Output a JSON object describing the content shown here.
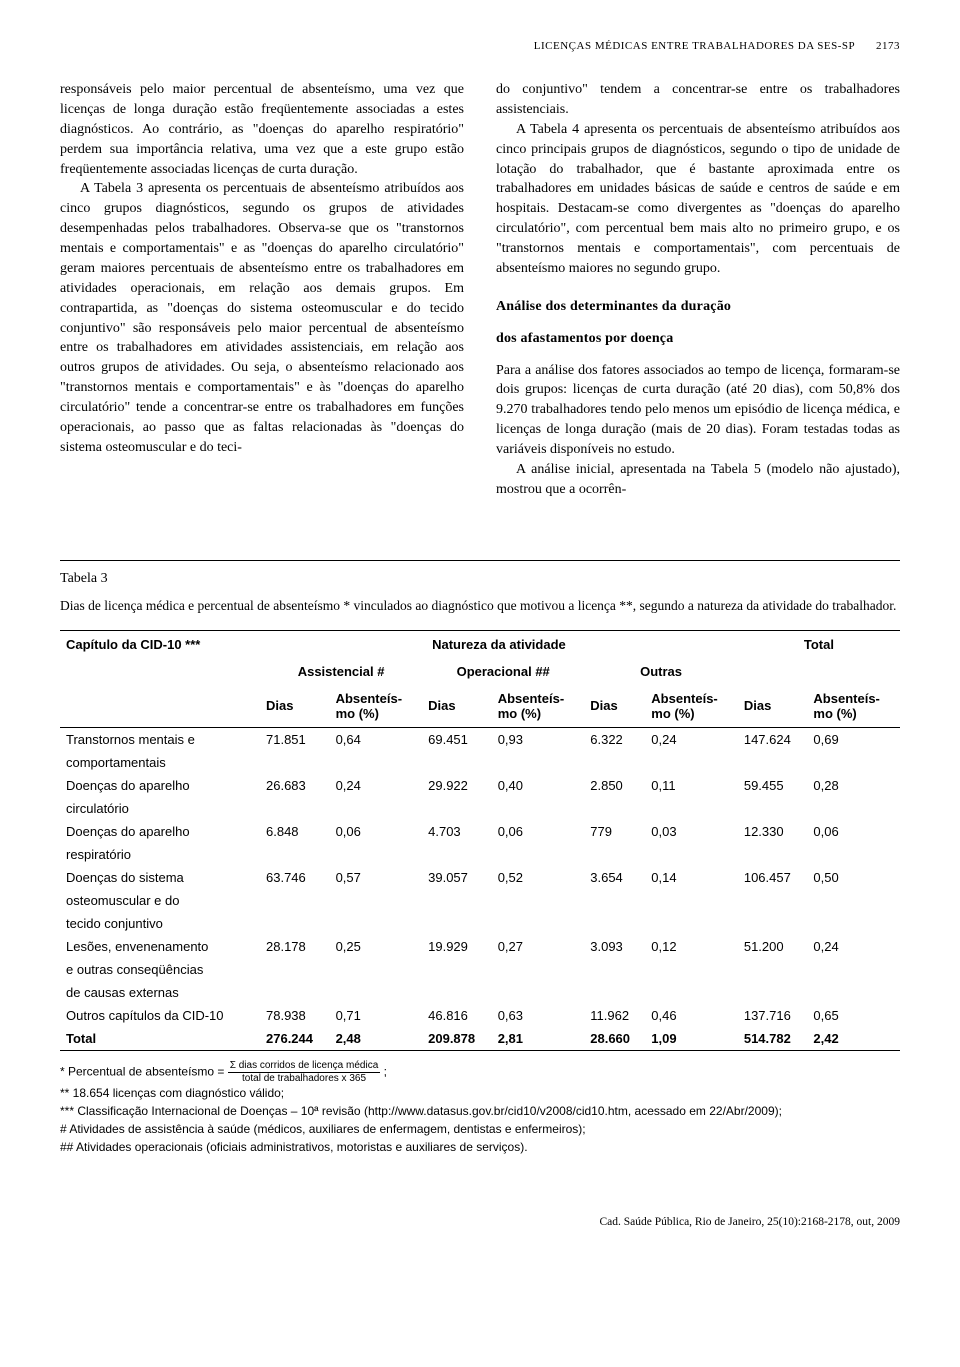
{
  "header": {
    "running_title": "LICENÇAS MÉDICAS ENTRE TRABALHADORES DA SES-SP",
    "page_number": "2173"
  },
  "left_column": {
    "p1": "responsáveis pelo maior percentual de absenteísmo, uma vez que licenças de longa duração estão freqüentemente associadas a estes diagnósticos. Ao contrário, as \"doenças do aparelho respiratório\" perdem sua importância relativa, uma vez que a este grupo estão freqüentemente associadas licenças de curta duração.",
    "p2": "A Tabela 3 apresenta os percentuais de absenteísmo atribuídos aos cinco grupos diagnósticos, segundo os grupos de atividades desempenhadas pelos trabalhadores. Observa-se que os \"transtornos mentais e comportamentais\" e as \"doenças do aparelho circulatório\" geram maiores percentuais de absenteísmo entre os trabalhadores em atividades operacionais, em relação aos demais grupos. Em contrapartida, as \"doenças do sistema osteomuscular e do tecido conjuntivo\" são responsáveis pelo maior percentual de absenteísmo entre os trabalhadores em atividades assistenciais, em relação aos outros grupos de atividades. Ou seja, o absenteísmo relacionado aos \"transtornos mentais e comportamentais\" e às \"doenças do aparelho circulatório\" tende a concentrar-se entre os trabalhadores em funções operacionais, ao passo que as faltas relacionadas às \"doenças do sistema osteomuscular e do teci-"
  },
  "right_column": {
    "p1": "do conjuntivo\" tendem a concentrar-se entre os trabalhadores assistenciais.",
    "p2": "A Tabela 4 apresenta os percentuais de absenteísmo atribuídos aos cinco principais grupos de diagnósticos, segundo o tipo de unidade de lotação do trabalhador, que é bastante aproximada entre os trabalhadores em unidades básicas de saúde e centros de saúde e em hospitais. Destacam-se como divergentes as \"doenças do aparelho circulatório\", com percentual bem mais alto no primeiro grupo, e os \"transtornos mentais e comportamentais\", com percentuais de absenteísmo maiores no segundo grupo.",
    "section_title": "Análise dos determinantes da duração",
    "section_sub": "dos afastamentos por doença",
    "p3": "Para a análise dos fatores associados ao tempo de licença, formaram-se dois grupos: licenças de curta duração (até 20 dias), com 50,8% dos 9.270 trabalhadores tendo pelo menos um episódio de licença médica, e licenças de longa duração (mais de 20 dias). Foram testadas todas as variáveis disponíveis no estudo.",
    "p4": "A análise inicial, apresentada na Tabela 5 (modelo não ajustado), mostrou que a ocorrên-"
  },
  "table": {
    "label": "Tabela 3",
    "caption": "Dias de licença médica e percentual de absenteísmo * vinculados ao diagnóstico que motivou a licença **, segundo a natureza da atividade do trabalhador.",
    "col_group_left": "Capítulo da CID-10 ***",
    "col_group_mid": "Natureza da atividade",
    "col_group_right": "Total",
    "sub_assistencial": "Assistencial #",
    "sub_operacional": "Operacional ##",
    "sub_outras": "Outras",
    "col_dias": "Dias",
    "col_abs": "Absenteís-",
    "col_abs2": "mo (%)",
    "rows": [
      {
        "label": "Transtornos mentais e",
        "a_d": "71.851",
        "a_p": "0,64",
        "o_d": "69.451",
        "o_p": "0,93",
        "u_d": "6.322",
        "u_p": "0,24",
        "t_d": "147.624",
        "t_p": "0,69"
      },
      {
        "label": "comportamentais"
      },
      {
        "label": "Doenças do aparelho",
        "a_d": "26.683",
        "a_p": "0,24",
        "o_d": "29.922",
        "o_p": "0,40",
        "u_d": "2.850",
        "u_p": "0,11",
        "t_d": "59.455",
        "t_p": "0,28"
      },
      {
        "label": "circulatório"
      },
      {
        "label": "Doenças do aparelho",
        "a_d": "6.848",
        "a_p": "0,06",
        "o_d": "4.703",
        "o_p": "0,06",
        "u_d": "779",
        "u_p": "0,03",
        "t_d": "12.330",
        "t_p": "0,06"
      },
      {
        "label": "respiratório"
      },
      {
        "label": "Doenças do sistema",
        "a_d": "63.746",
        "a_p": "0,57",
        "o_d": "39.057",
        "o_p": "0,52",
        "u_d": "3.654",
        "u_p": "0,14",
        "t_d": "106.457",
        "t_p": "0,50"
      },
      {
        "label": "osteomuscular e do"
      },
      {
        "label": "tecido conjuntivo"
      },
      {
        "label": "Lesões, envenenamento",
        "a_d": "28.178",
        "a_p": "0,25",
        "o_d": "19.929",
        "o_p": "0,27",
        "u_d": "3.093",
        "u_p": "0,12",
        "t_d": "51.200",
        "t_p": "0,24"
      },
      {
        "label": "e outras conseqüências"
      },
      {
        "label": "de causas externas"
      },
      {
        "label": "Outros capítulos da CID-10",
        "a_d": "78.938",
        "a_p": "0,71",
        "o_d": "46.816",
        "o_p": "0,63",
        "u_d": "11.962",
        "u_p": "0,46",
        "t_d": "137.716",
        "t_p": "0,65"
      },
      {
        "label": "Total",
        "bold": true,
        "a_d": "276.244",
        "a_p": "2,48",
        "o_d": "209.878",
        "o_p": "2,81",
        "u_d": "28.660",
        "u_p": "1,09",
        "t_d": "514.782",
        "t_p": "2,42"
      }
    ],
    "footnotes": {
      "f1_pref": "* Percentual de absenteísmo = ",
      "f1_num": "Σ dias corridos de licença médica",
      "f1_den": "total de trabalhadores x 365",
      "f1_suf": ";",
      "f2": "** 18.654 licenças com diagnóstico válido;",
      "f3": "*** Classificação Internacional de Doenças – 10ª revisão (http://www.datasus.gov.br/cid10/v2008/cid10.htm, acessado em 22/Abr/2009);",
      "f4": "# Atividades de assistência à saúde (médicos, auxiliares de enfermagem, dentistas e enfermeiros);",
      "f5": "## Atividades operacionais (oficiais administrativos, motoristas e auxiliares de serviços)."
    }
  },
  "journal_footer": "Cad. Saúde Pública, Rio de Janeiro, 25(10):2168-2178, out, 2009"
}
